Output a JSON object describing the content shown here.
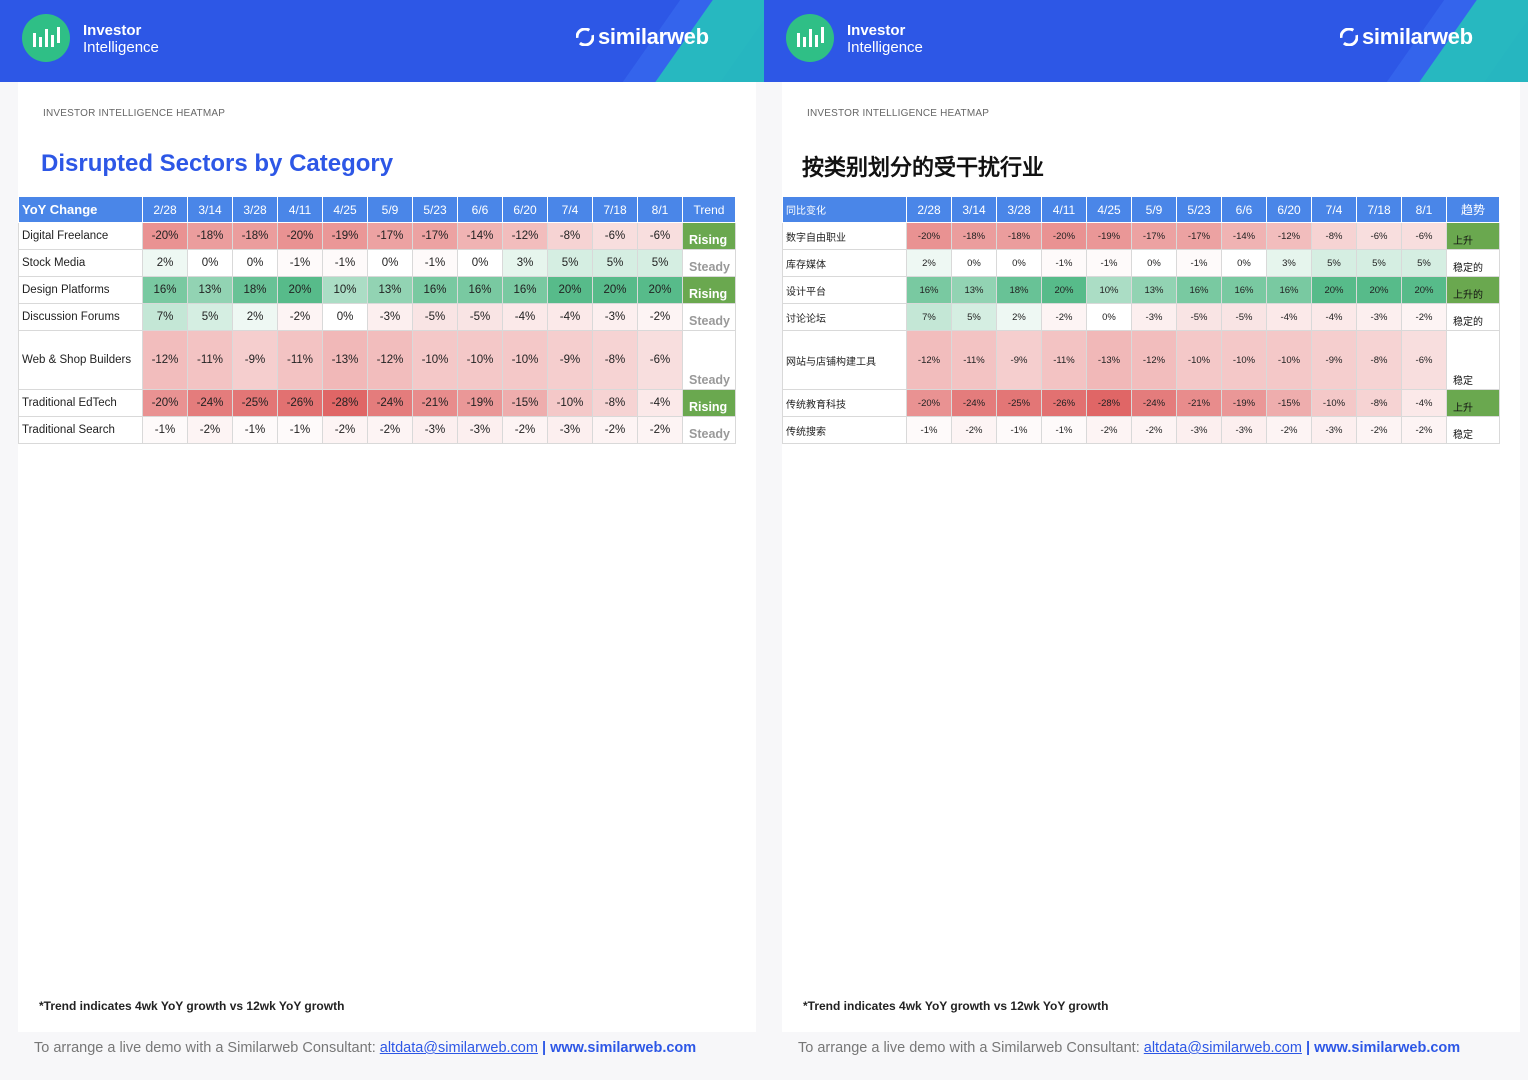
{
  "brand": {
    "line1": "Investor",
    "line2": "Intelligence",
    "logo": "similarweb"
  },
  "subtitle": "INVESTOR INTELLIGENCE HEATMAP",
  "titles": {
    "en": "Disrupted Sectors by Category",
    "cn": "按类别划分的受干扰行业"
  },
  "columns": [
    "2/28",
    "3/14",
    "3/28",
    "4/11",
    "4/25",
    "5/9",
    "5/23",
    "6/6",
    "6/20",
    "7/4",
    "7/18",
    "8/1"
  ],
  "header_en": {
    "first": "YoY Change",
    "trend": "Trend"
  },
  "header_cn": {
    "first": "同比变化",
    "trend": "趋势"
  },
  "rows": [
    {
      "en": "Digital Freelance",
      "cn": "数字自由职业",
      "values": [
        -20,
        -18,
        -18,
        -20,
        -19,
        -17,
        -17,
        -14,
        -12,
        -8,
        -6,
        -6
      ],
      "trend_en": "Rising",
      "trend_cn": "上升",
      "rising": true
    },
    {
      "en": "Stock Media",
      "cn": "库存媒体",
      "values": [
        2,
        0,
        0,
        -1,
        -1,
        0,
        -1,
        0,
        3,
        5,
        5,
        5
      ],
      "trend_en": "Steady",
      "trend_cn": "稳定的",
      "rising": false
    },
    {
      "en": "Design Platforms",
      "cn": "设计平台",
      "values": [
        16,
        13,
        18,
        20,
        10,
        13,
        16,
        16,
        16,
        20,
        20,
        20
      ],
      "trend_en": "Rising",
      "trend_cn": "上升的",
      "rising": true
    },
    {
      "en": "Discussion Forums",
      "cn": "讨论论坛",
      "values": [
        7,
        5,
        2,
        -2,
        0,
        -3,
        -5,
        -5,
        -4,
        -4,
        -3,
        -2
      ],
      "trend_en": "Steady",
      "trend_cn": "稳定的",
      "rising": false
    },
    {
      "en": "Web & Shop Builders",
      "cn": "网站与店铺构建工具",
      "values": [
        -12,
        -11,
        -9,
        -11,
        -13,
        -12,
        -10,
        -10,
        -10,
        -9,
        -8,
        -6
      ],
      "trend_en": "Steady",
      "trend_cn": "稳定",
      "rising": false,
      "tall": true
    },
    {
      "en": "Traditional EdTech",
      "cn": "传统教育科技",
      "values": [
        -20,
        -24,
        -25,
        -26,
        -28,
        -24,
        -21,
        -19,
        -15,
        -10,
        -8,
        -4
      ],
      "trend_en": "Rising",
      "trend_cn": "上升",
      "rising": true
    },
    {
      "en": "Traditional Search",
      "cn": "传统搜索",
      "values": [
        -1,
        -2,
        -1,
        -1,
        -2,
        -2,
        -3,
        -3,
        -2,
        -3,
        -2,
        -2
      ],
      "trend_en": "Steady",
      "trend_cn": "稳定",
      "rising": false
    }
  ],
  "footnote": "*Trend indicates 4wk YoY growth vs 12wk YoY growth",
  "footer": {
    "text": "To arrange a live demo with a Similarweb Consultant:",
    "email": "altdata@similarweb.com",
    "sep": "|",
    "site": "www.similarweb.com"
  },
  "colors": {
    "header": "#2d57e6",
    "table_header": "#4a86e8",
    "rising": "#6aa84f",
    "neg_max": "#e06666",
    "pos_max": "#57bb8a"
  }
}
